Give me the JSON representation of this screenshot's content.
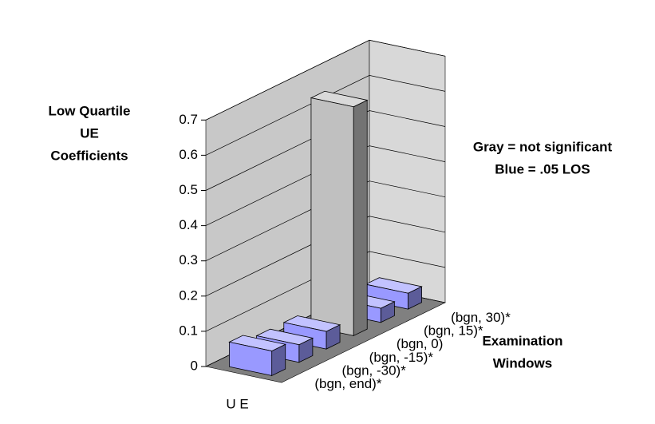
{
  "chart_data": {
    "type": "bar3d",
    "ylabel": [
      "Low Quartile",
      "UE",
      "Coefficients"
    ],
    "xlabel": "U E",
    "zlabel": [
      "Examination",
      "Windows"
    ],
    "annotations": [
      "Gray = not significant",
      "Blue = .05 LOS"
    ],
    "categories": [
      "(bgn, end)*",
      "(bgn, -30)*",
      "(bgn, -15)*",
      "(bgn, 0)",
      "(bgn, 15)*",
      "(bgn, 30)*"
    ],
    "values": [
      0.07,
      0.05,
      0.05,
      0.65,
      0.04,
      0.045
    ],
    "colors": [
      "#9999ff",
      "#9999ff",
      "#9999ff",
      "#c0c0c0",
      "#9999ff",
      "#9999ff"
    ],
    "ylim": [
      0,
      0.7
    ],
    "yticks": [
      0,
      0.1,
      0.2,
      0.3,
      0.4,
      0.5,
      0.6,
      0.7
    ],
    "grid": true
  }
}
